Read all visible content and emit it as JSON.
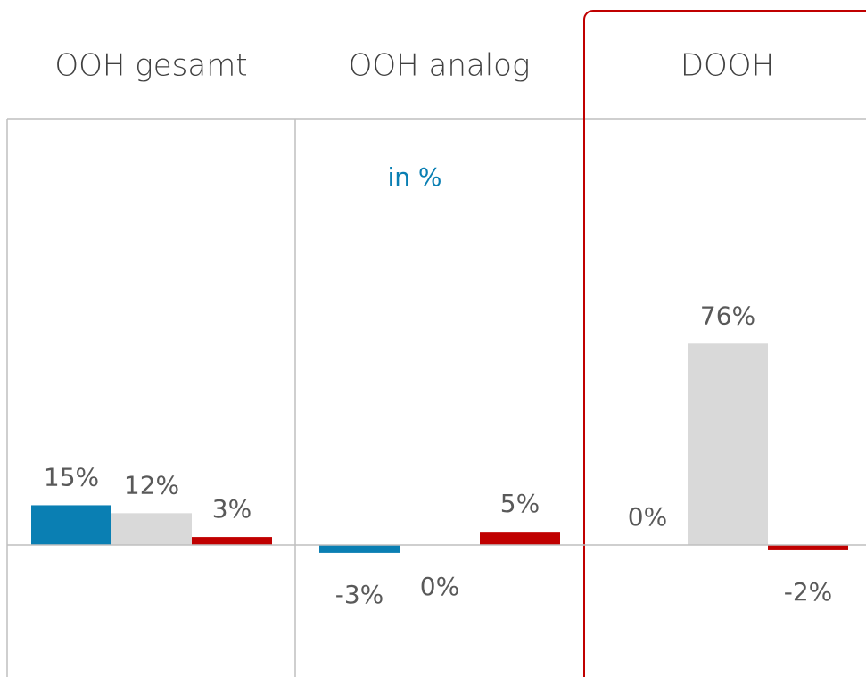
{
  "chart_data": {
    "type": "bar",
    "subtitle": "in %",
    "categories": [
      "OOH gesamt",
      "OOH analog",
      "DOOH"
    ],
    "series": [
      {
        "color": "#0a7fb3",
        "values": [
          15,
          -3,
          0
        ],
        "value_labels": [
          "15%",
          "-3%",
          "0%"
        ]
      },
      {
        "color": "#d9d9d9",
        "values": [
          12,
          0,
          76
        ],
        "value_labels": [
          "12%",
          "0%",
          "76%"
        ]
      },
      {
        "color": "#c00000",
        "values": [
          3,
          5,
          -2
        ],
        "value_labels": [
          "3%",
          "5%",
          "-2%"
        ]
      }
    ]
  }
}
